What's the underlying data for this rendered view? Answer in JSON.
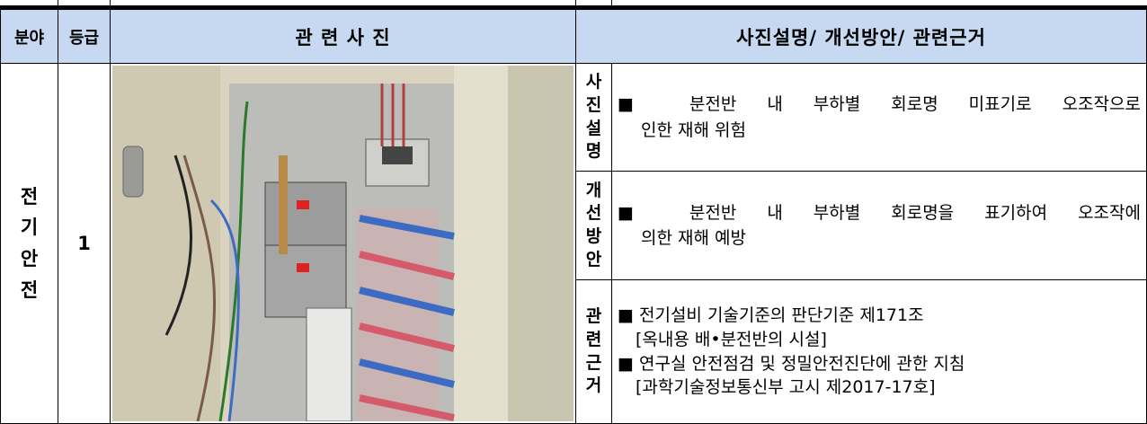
{
  "table": {
    "header": [
      "분야",
      "등급",
      "관 련 사 진",
      "사진설명/ 개선방안/ 관련근거"
    ],
    "rows": [
      {
        "field": "전기안전",
        "grade": 1,
        "sections": [
          {
            "label": "사진설명",
            "lines": [
              "■ 분전반 내 부하별 회로명 미표기로 오조작으로",
              "인한 재해 위험"
            ]
          },
          {
            "label": "개선방안",
            "lines": [
              "■ 분전반 내 부하별 회로명을 표기하여 오조작에",
              "의한 재해 예방"
            ]
          },
          {
            "label": "관련근거",
            "lines": [
              "■ 전기설비 기술기준의 판단기준 제171조",
              "[옥내용 배•분전반의 시설]",
              "■ 연구실 안전점검 및 정밀안전진단에 관한 지침",
              "[과학기술정보통신부 고시 제2017-17호]"
            ]
          }
        ]
      }
    ]
  }
}
